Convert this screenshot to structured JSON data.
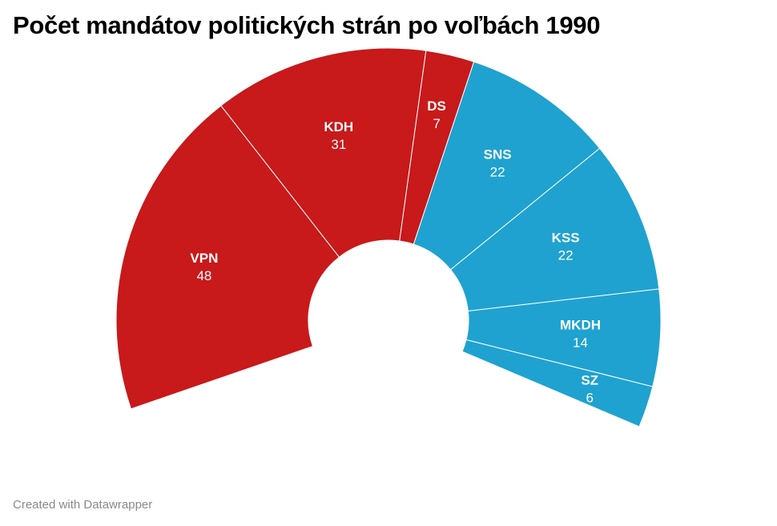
{
  "title": "Počet mandátov politických strán po voľbách 1990",
  "footer": "Created with Datawrapper",
  "colors": {
    "coalition": "#c8191b",
    "opposition": "#1fa2d0",
    "separator": "#ffffff"
  },
  "chart_data": {
    "type": "pie",
    "variant": "half-donut-parliament",
    "title": "Počet mandátov politických strán po voľbách 1990",
    "total": 150,
    "series": [
      {
        "name": "VPN",
        "value": 48,
        "group": "coalition"
      },
      {
        "name": "KDH",
        "value": 31,
        "group": "coalition"
      },
      {
        "name": "DS",
        "value": 7,
        "group": "coalition"
      },
      {
        "name": "SNS",
        "value": 22,
        "group": "opposition"
      },
      {
        "name": "KSS",
        "value": 22,
        "group": "opposition"
      },
      {
        "name": "MKDH",
        "value": 14,
        "group": "opposition"
      },
      {
        "name": "SZ",
        "value": 6,
        "group": "opposition"
      }
    ]
  }
}
